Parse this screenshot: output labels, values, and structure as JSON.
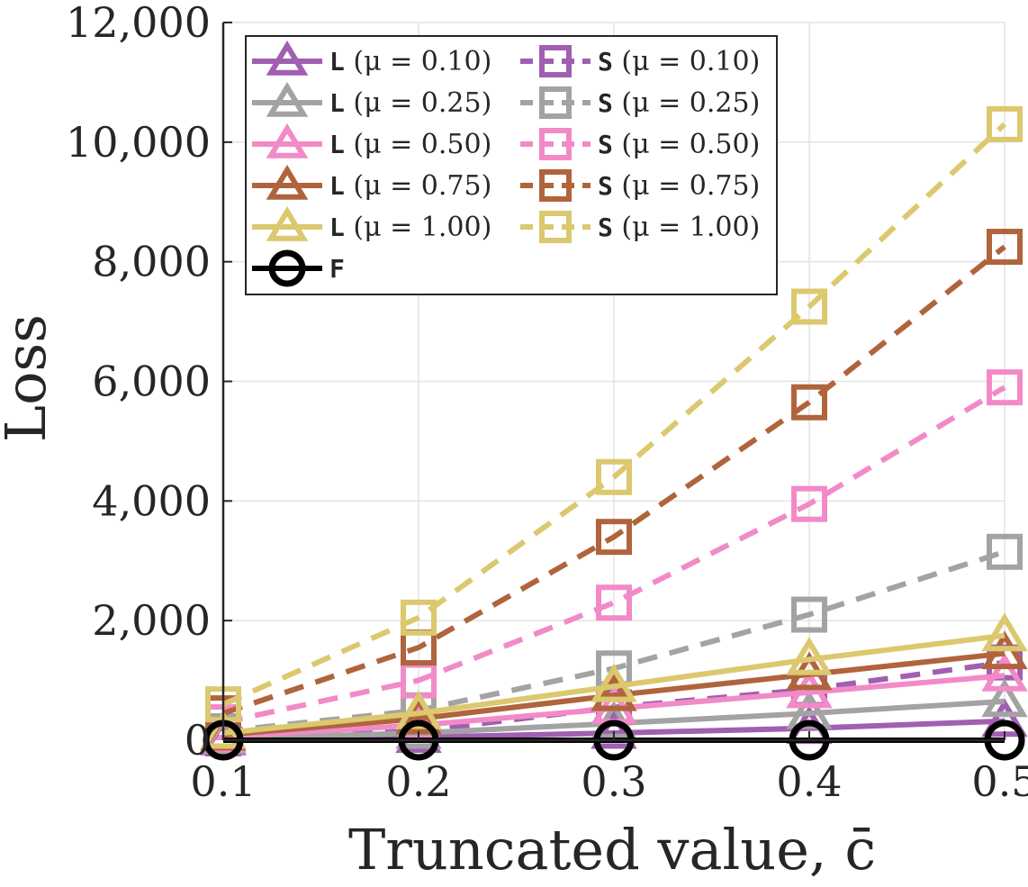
{
  "chart_data": {
    "type": "line",
    "title": "",
    "xlabel": "Truncated value, c̄",
    "ylabel": "Loss",
    "x": [
      0.1,
      0.2,
      0.3,
      0.4,
      0.5
    ],
    "xlim": [
      0.1,
      0.5
    ],
    "ylim": [
      0,
      12000
    ],
    "xticks": [
      "0.1",
      "0.2",
      "0.3",
      "0.4",
      "0.5"
    ],
    "yticks": [
      "0",
      "2,000",
      "4,000",
      "6,000",
      "8,000",
      "10,000",
      "12,000"
    ],
    "grid": true,
    "legend_position": "top-left",
    "series": [
      {
        "name": "L (μ = 0.10)",
        "legend_code": "L",
        "legend_rest": " (μ = 0.10)",
        "marker": "triangle",
        "dashed": false,
        "color": "#a05fb0",
        "values": [
          10,
          50,
          120,
          200,
          320
        ]
      },
      {
        "name": "L (μ = 0.25)",
        "legend_code": "L",
        "legend_rest": " (μ = 0.25)",
        "marker": "triangle",
        "dashed": false,
        "color": "#a3a3a3",
        "values": [
          30,
          120,
          280,
          450,
          650
        ]
      },
      {
        "name": "L (μ = 0.50)",
        "legend_code": "L",
        "legend_rest": " (μ = 0.50)",
        "marker": "triangle",
        "dashed": false,
        "color": "#f28ac8",
        "values": [
          60,
          250,
          530,
          800,
          1080
        ]
      },
      {
        "name": "L (μ = 0.75)",
        "legend_code": "L",
        "legend_rest": " (μ = 0.75)",
        "marker": "triangle",
        "dashed": false,
        "color": "#b0643c",
        "values": [
          90,
          360,
          750,
          1100,
          1450
        ]
      },
      {
        "name": "L (μ = 1.00)",
        "legend_code": "L",
        "legend_rest": " (μ = 1.00)",
        "marker": "triangle",
        "dashed": false,
        "color": "#dcc86e",
        "values": [
          120,
          450,
          900,
          1350,
          1750
        ]
      },
      {
        "name": "F",
        "legend_code": "F",
        "legend_rest": "",
        "marker": "circle",
        "dashed": false,
        "color": "#000000",
        "values": [
          0,
          0,
          0,
          0,
          0
        ]
      },
      {
        "name": "S (μ = 0.10)",
        "legend_code": "S",
        "legend_rest": " (μ = 0.10)",
        "marker": "square",
        "dashed": true,
        "color": "#a05fb0",
        "values": [
          30,
          150,
          550,
          850,
          1300
        ]
      },
      {
        "name": "S (μ = 0.25)",
        "legend_code": "S",
        "legend_rest": " (μ = 0.25)",
        "marker": "square",
        "dashed": true,
        "color": "#a3a3a3",
        "values": [
          150,
          500,
          1200,
          2100,
          3150
        ]
      },
      {
        "name": "S (μ = 0.50)",
        "legend_code": "S",
        "legend_rest": " (μ = 0.50)",
        "marker": "square",
        "dashed": true,
        "color": "#f28ac8",
        "values": [
          300,
          1000,
          2300,
          3950,
          5900
        ]
      },
      {
        "name": "S (μ = 0.75)",
        "legend_code": "S",
        "legend_rest": " (μ = 0.75)",
        "marker": "square",
        "dashed": true,
        "color": "#b0643c",
        "values": [
          450,
          1550,
          3400,
          5650,
          8250
        ]
      },
      {
        "name": "S (μ = 1.00)",
        "legend_code": "S",
        "legend_rest": " (μ = 1.00)",
        "marker": "square",
        "dashed": true,
        "color": "#dcc86e",
        "values": [
          600,
          2050,
          4400,
          7250,
          10300
        ]
      }
    ]
  }
}
